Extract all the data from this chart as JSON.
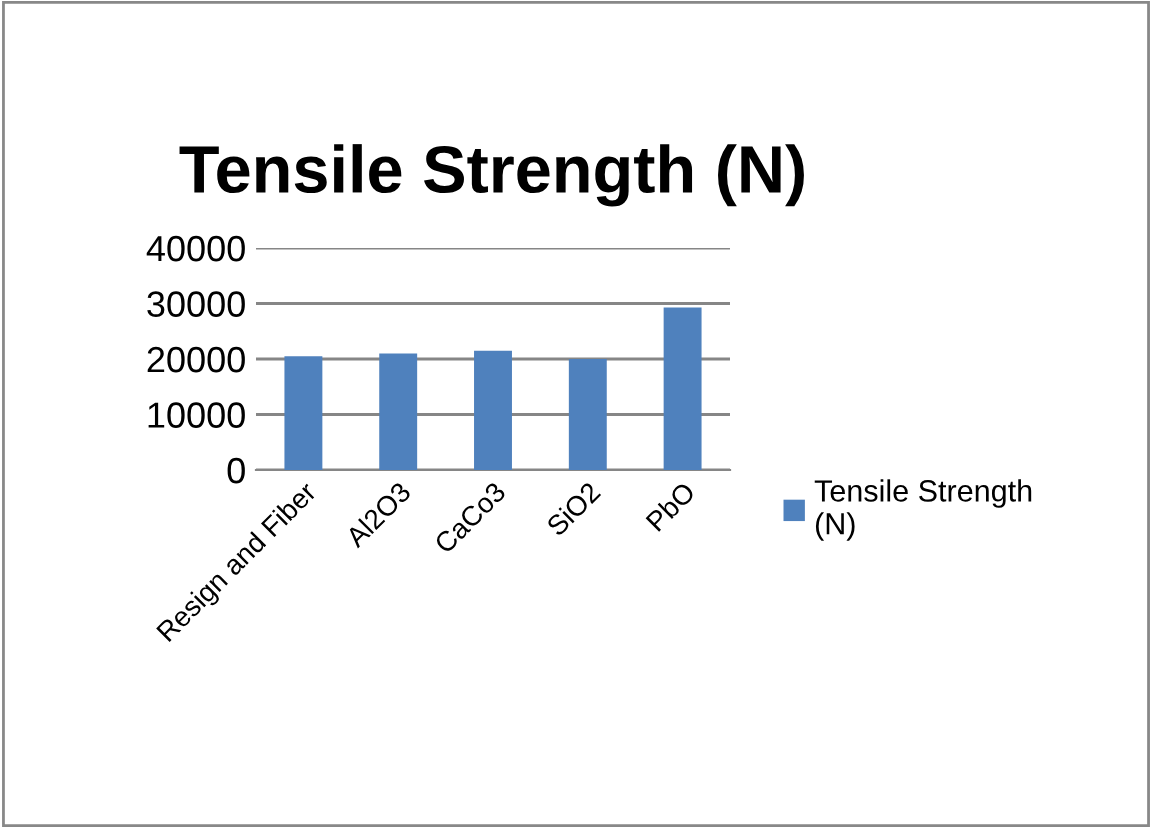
{
  "chart_data": {
    "type": "bar",
    "title": "Tensile Strength (N)",
    "categories": [
      "Resign and Fiber",
      "Al2O3",
      "CaCo3",
      "SiO2",
      "PbO"
    ],
    "series": [
      {
        "name": "Tensile Strength (N)",
        "color": "#4f81bd",
        "values": [
          20500,
          21000,
          21500,
          20000,
          29300
        ]
      }
    ],
    "ylim": [
      0,
      40000
    ],
    "yticks": [
      0,
      10000,
      20000,
      30000,
      40000
    ],
    "grid": "y",
    "legend": "right"
  }
}
